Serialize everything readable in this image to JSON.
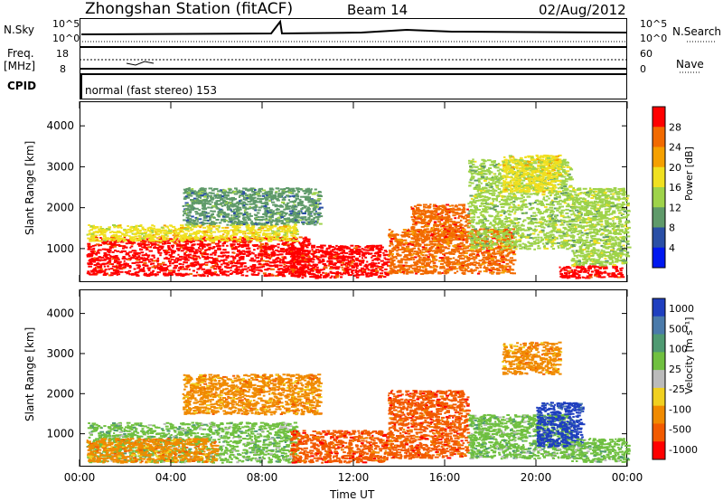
{
  "header": {
    "station": "Zhongshan Station (fitACF)",
    "beam": "Beam 14",
    "date": "02/Aug/2012"
  },
  "top_panels": {
    "nsky_label": "N.Sky",
    "nsky_ticks": [
      "10^5",
      "10^0"
    ],
    "nsearch_label": "N.Search",
    "nsearch_ticks": [
      "10^5",
      "10^0"
    ],
    "freq_label_1": "Freq.",
    "freq_label_2": "[MHz]",
    "freq_ticks": [
      "18",
      "8"
    ],
    "nave_label": "Nave",
    "nave_ticks": [
      "60",
      "0"
    ],
    "cpid_label": "CPID",
    "cpid_value": "normal (fast stereo) 153"
  },
  "colors": {
    "power_scale": [
      "#0018f0",
      "#2a4fa6",
      "#5f9a6a",
      "#9ed34a",
      "#f0e020",
      "#f5a000",
      "#f26a00",
      "#ff0000"
    ],
    "velocity_scale": [
      "#1f3fbf",
      "#4a7aaa",
      "#4f9a72",
      "#70c040",
      "#bbbbbb",
      "#f0d020",
      "#f08a00",
      "#f25a00",
      "#ff0000"
    ]
  },
  "chart_data": [
    {
      "type": "heatmap",
      "name": "Power",
      "xlabel": "",
      "ylabel": "Slant Range [km]",
      "x_ticks": [
        "00:00",
        "04:00",
        "08:00",
        "12:00",
        "16:00",
        "20:00",
        "00:00"
      ],
      "xlim_hours": [
        0,
        24
      ],
      "y_ticks": [
        1000,
        2000,
        3000,
        4000
      ],
      "ylim": [
        180,
        4600
      ],
      "colorbar_label": "Power [dB]",
      "colorbar_ticks": [
        4,
        8,
        12,
        16,
        20,
        24,
        28
      ],
      "regions": [
        {
          "t": [
            0.3,
            10
          ],
          "r": [
            350,
            1300
          ],
          "level": 28
        },
        {
          "t": [
            0.3,
            9.5
          ],
          "r": [
            1200,
            1600
          ],
          "level": 16
        },
        {
          "t": [
            9.2,
            13.5
          ],
          "r": [
            300,
            1100
          ],
          "level": 28
        },
        {
          "t": [
            4.5,
            10.5
          ],
          "r": [
            1600,
            2500
          ],
          "level": 8
        },
        {
          "t": [
            13.5,
            19
          ],
          "r": [
            400,
            1500
          ],
          "level": 24
        },
        {
          "t": [
            14.5,
            17
          ],
          "r": [
            1200,
            2100
          ],
          "level": 24
        },
        {
          "t": [
            17,
            21.5
          ],
          "r": [
            1000,
            3200
          ],
          "level": 12
        },
        {
          "t": [
            18.5,
            21
          ],
          "r": [
            2400,
            3300
          ],
          "level": 16
        },
        {
          "t": [
            21,
            23.8
          ],
          "r": [
            300,
            600
          ],
          "level": 28
        },
        {
          "t": [
            21.5,
            24
          ],
          "r": [
            600,
            2500
          ],
          "level": 12
        }
      ]
    },
    {
      "type": "heatmap",
      "name": "Velocity",
      "xlabel": "Time UT",
      "ylabel": "Slant Range [km]",
      "x_ticks": [
        "00:00",
        "04:00",
        "08:00",
        "12:00",
        "16:00",
        "20:00",
        "00:00"
      ],
      "xlim_hours": [
        0,
        24
      ],
      "y_ticks": [
        1000,
        2000,
        3000,
        4000
      ],
      "ylim": [
        180,
        4600
      ],
      "colorbar_label": "Velocity [m s⁻¹]",
      "colorbar_ticks": [
        1000,
        500,
        100,
        25,
        -25,
        -100,
        -500,
        -1000
      ],
      "regions": [
        {
          "t": [
            0.3,
            9.5
          ],
          "r": [
            300,
            1300
          ],
          "level": 100
        },
        {
          "t": [
            0.3,
            6
          ],
          "r": [
            300,
            900
          ],
          "level": -100
        },
        {
          "t": [
            9.2,
            13.5
          ],
          "r": [
            300,
            1100
          ],
          "level": -500
        },
        {
          "t": [
            4.5,
            10.5
          ],
          "r": [
            1500,
            2500
          ],
          "level": -100
        },
        {
          "t": [
            13.5,
            17
          ],
          "r": [
            400,
            2100
          ],
          "level": -500
        },
        {
          "t": [
            17,
            21.5
          ],
          "r": [
            400,
            1500
          ],
          "level": 100
        },
        {
          "t": [
            18.5,
            21
          ],
          "r": [
            2500,
            3300
          ],
          "level": -100
        },
        {
          "t": [
            20,
            22
          ],
          "r": [
            700,
            1800
          ],
          "level": 1000
        },
        {
          "t": [
            21.5,
            24
          ],
          "r": [
            300,
            900
          ],
          "level": 100
        }
      ]
    }
  ]
}
